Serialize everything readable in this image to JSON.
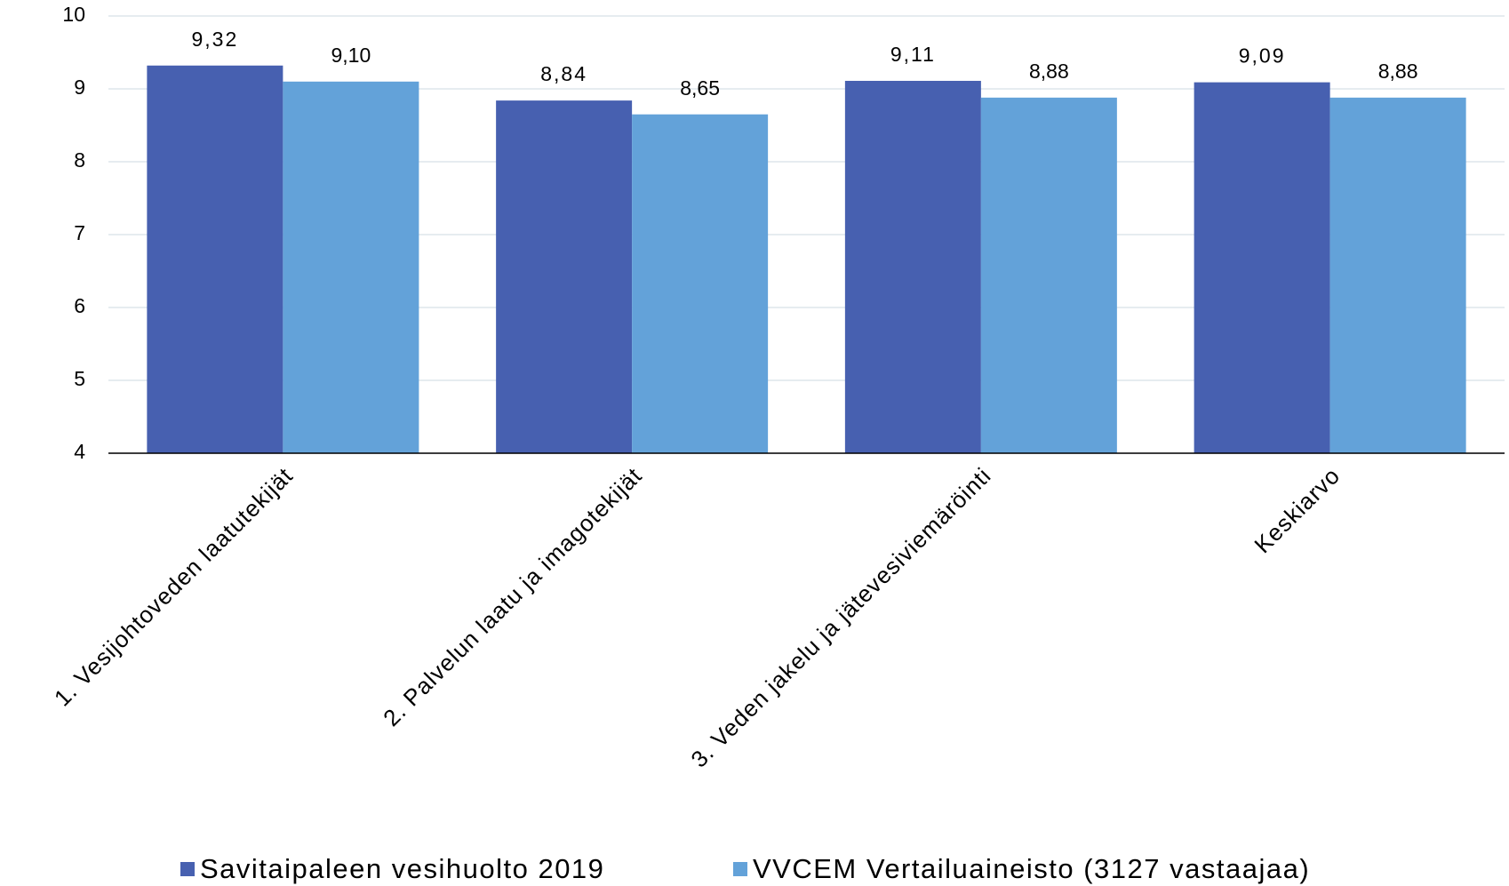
{
  "chart_data": {
    "type": "bar",
    "categories": [
      "1. Vesijohtoveden laatutekijät",
      "2. Palvelun laatu ja imagotekijät",
      "3. Veden jakelu ja jätevesiviemäröinti",
      "Keskiarvo"
    ],
    "series": [
      {
        "name": "Savitaipaleen vesihuolto 2019",
        "color": "#4760b0",
        "values": [
          9.32,
          8.84,
          9.11,
          9.09
        ],
        "value_labels": [
          "9,32",
          "8,84",
          "9,11",
          "9,09"
        ]
      },
      {
        "name": "VVCEM Vertailuaineisto (3127 vastaajaa)",
        "color": "#63a2d9",
        "values": [
          9.1,
          8.65,
          8.88,
          8.88
        ],
        "value_labels": [
          "9,10",
          "8,65",
          "8,88",
          "8,88"
        ]
      }
    ],
    "ylim": [
      4,
      10
    ],
    "yticks": [
      4,
      5,
      6,
      7,
      8,
      9,
      10
    ],
    "grid": true,
    "legend": "bottom"
  }
}
